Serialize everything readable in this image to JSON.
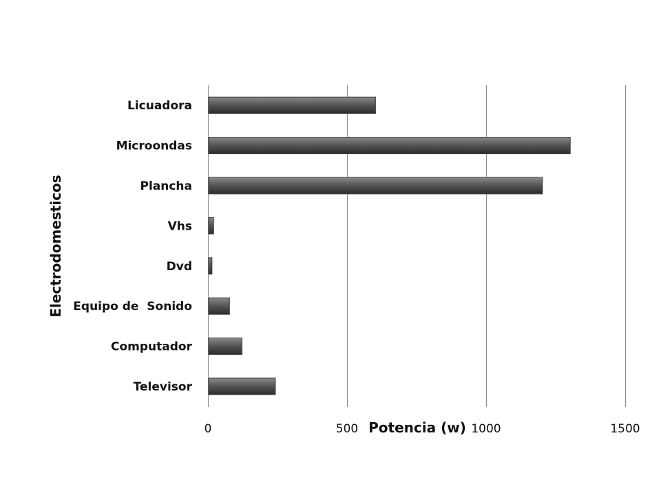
{
  "chart_data": {
    "type": "bar",
    "orientation": "horizontal",
    "categories": [
      "Televisor",
      "Computador",
      "Equipo de  Sonido",
      "Dvd",
      "Vhs",
      "Plancha",
      "Microondas",
      "Licuadora"
    ],
    "values": [
      240,
      120,
      75,
      12,
      18,
      1200,
      1300,
      600
    ],
    "xlabel": "Potencia (w)",
    "ylabel": "Electrodomesticos",
    "xlim": [
      0,
      1500
    ],
    "xticks": [
      0,
      500,
      1000,
      1500
    ],
    "xtick_labels": [
      "0",
      "500",
      "1000",
      "1500"
    ],
    "grid": "vertical",
    "legend": "none",
    "bar_color": "#5a5a5a"
  }
}
